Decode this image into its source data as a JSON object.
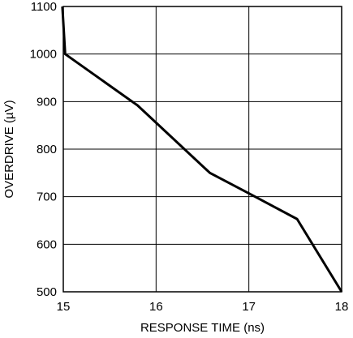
{
  "chart_data": {
    "type": "line",
    "xlabel": "RESPONSE TIME (ns)",
    "ylabel": "OVERDRIVE (µV)",
    "xlim": [
      15,
      18
    ],
    "ylim": [
      500,
      1100
    ],
    "x_ticks": [
      "15",
      "16",
      "17",
      "18"
    ],
    "y_ticks": [
      "500",
      "600",
      "700",
      "800",
      "900",
      "1000",
      "1100"
    ],
    "grid": true,
    "line_color": "#000000",
    "series": [
      {
        "x": [
          14.99,
          15.02,
          15.8,
          16.58,
          17.0,
          17.52,
          18.0
        ],
        "y": [
          1100,
          1000,
          892,
          750,
          707,
          653,
          500
        ]
      }
    ]
  }
}
